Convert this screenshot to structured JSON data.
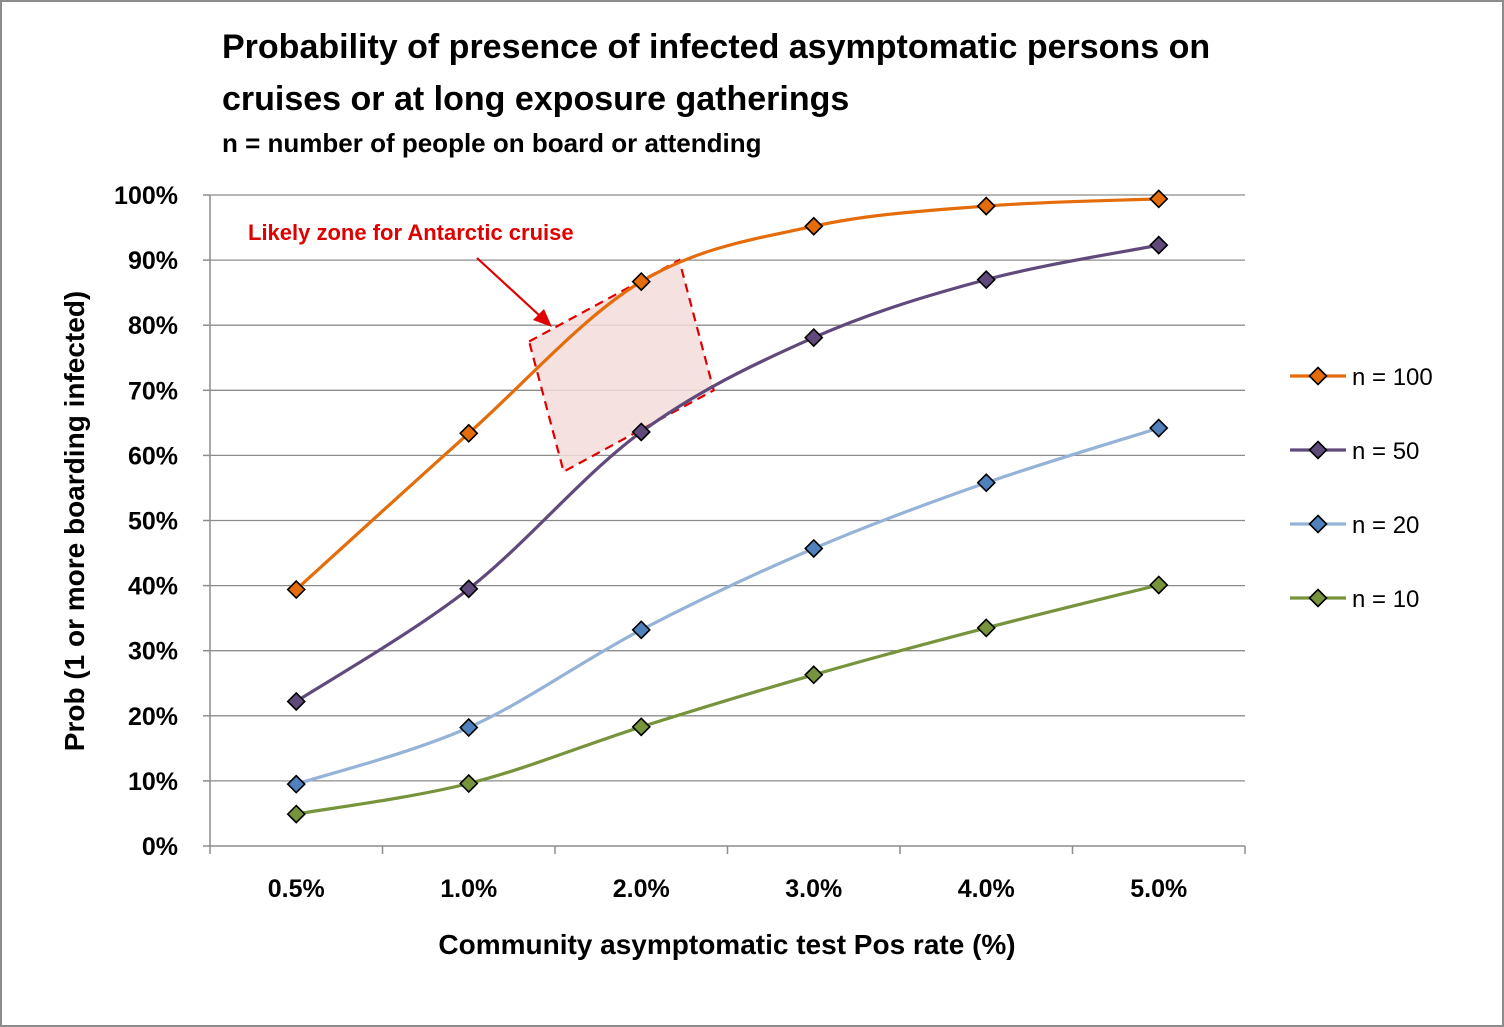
{
  "chart_data": {
    "type": "line",
    "title": "Probability of presence of infected asymptomatic persons on cruises or at long exposure gatherings",
    "title_lines": [
      "Probability of presence of infected asymptomatic persons on",
      "cruises or at long exposure gatherings"
    ],
    "subtitle": "n = number of people on board or attending",
    "xlabel": "Community asymptomatic test Pos rate (%)",
    "ylabel": "Prob (1 or more boarding infected)",
    "categories": [
      "0.5%",
      "1.0%",
      "2.0%",
      "3.0%",
      "4.0%",
      "5.0%"
    ],
    "ylim": [
      0,
      1
    ],
    "y_ticks": [
      "0%",
      "10%",
      "20%",
      "30%",
      "40%",
      "50%",
      "60%",
      "70%",
      "80%",
      "90%",
      "100%"
    ],
    "grid": "horizontal",
    "legend_position": "right",
    "series": [
      {
        "name": "n = 100",
        "color": "#e46c0a",
        "values": [
          0.394,
          0.634,
          0.867,
          0.952,
          0.983,
          0.994
        ]
      },
      {
        "name": "n = 50",
        "color": "#604a7b",
        "values": [
          0.222,
          0.395,
          0.636,
          0.781,
          0.87,
          0.923
        ]
      },
      {
        "name": "n = 20",
        "color": "#95b3d7",
        "values": [
          0.095,
          0.182,
          0.332,
          0.457,
          0.558,
          0.642
        ]
      },
      {
        "name": "n = 10",
        "color": "#77933c",
        "values": [
          0.049,
          0.096,
          0.183,
          0.263,
          0.335,
          0.401
        ]
      }
    ],
    "marker_fills": {
      "n = 100": "#e46c0a",
      "n = 50": "#604a7b",
      "n = 20": "#4f81bd",
      "n = 10": "#77933c"
    },
    "annotation": {
      "text": "Likely zone for Antarctic cruise",
      "color": "#e00000",
      "zone_fill": "#f2dcdb"
    }
  }
}
